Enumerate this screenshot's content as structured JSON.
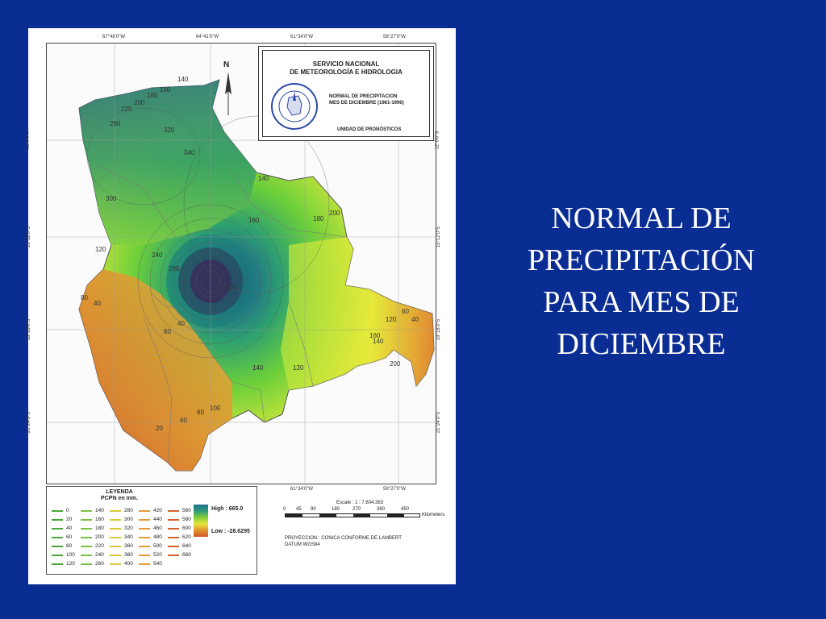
{
  "slide": {
    "title_lines": [
      "NORMAL DE",
      "PRECIPITACIÓN",
      "PARA MES DE",
      "DICIEMBRE"
    ]
  },
  "map": {
    "institution_line1": "SERVICIO NACIONAL",
    "institution_line2": "DE METEOROLOGÍA E HIDROLOGIA",
    "subtitle_line1": "NORMAL DE PRECIPITACION",
    "subtitle_line2": "MES DE DICIEMBRE (1961-1990)",
    "unit": "UNIDAD DE PRONÓSTICOS",
    "north_label": "N",
    "top_coords": [
      "67°48'0\"W",
      "64°41'0\"W",
      "61°34'0\"W",
      "58°27'0\"W"
    ],
    "side_coords": [
      "12°0'0\"S",
      "15°12'0\"S",
      "18°18'0\"S",
      "21°24'0\"S"
    ],
    "side_coords_right": [
      "12°0'0\"S",
      "15°12'0\"S",
      "18°18'0\"S",
      "21°24'0\"S"
    ],
    "isohyet_labels": [
      "140",
      "160",
      "180",
      "200",
      "220",
      "280",
      "320",
      "340",
      "300",
      "140",
      "160",
      "180",
      "200",
      "120",
      "240",
      "280",
      "320",
      "80",
      "40",
      "60",
      "40",
      "200",
      "140",
      "160",
      "120",
      "140",
      "120",
      "60",
      "40",
      "40",
      "60",
      "20",
      "100"
    ]
  },
  "legend": {
    "title": "LEYENDA",
    "subtitle": "PCPN en mm.",
    "values": [
      [
        "0",
        "20",
        "40",
        "60",
        "80",
        "100",
        "120"
      ],
      [
        "140",
        "160",
        "180",
        "200",
        "220",
        "240",
        "260"
      ],
      [
        "280",
        "300",
        "320",
        "340",
        "360",
        "380",
        "400"
      ],
      [
        "420",
        "440",
        "460",
        "480",
        "500",
        "520",
        "540"
      ],
      [
        "560",
        "580",
        "600",
        "620",
        "640",
        "660"
      ]
    ],
    "colors": [
      "#4aa83a",
      "#7cc242",
      "#d9c93a",
      "#e59a3a",
      "#d8602e"
    ],
    "high": "High : 665.0",
    "low": "Low : -28.6295"
  },
  "scale": {
    "label": "Escale : 1 : 7.604.363",
    "ticks": [
      "0",
      "45",
      "90",
      "180",
      "270",
      "360",
      "450"
    ],
    "unit": "Kilometers",
    "projection": "PROYECCION : CONICA CONFORME DE LAMBERT",
    "datum": "DATUM          WGS84"
  }
}
